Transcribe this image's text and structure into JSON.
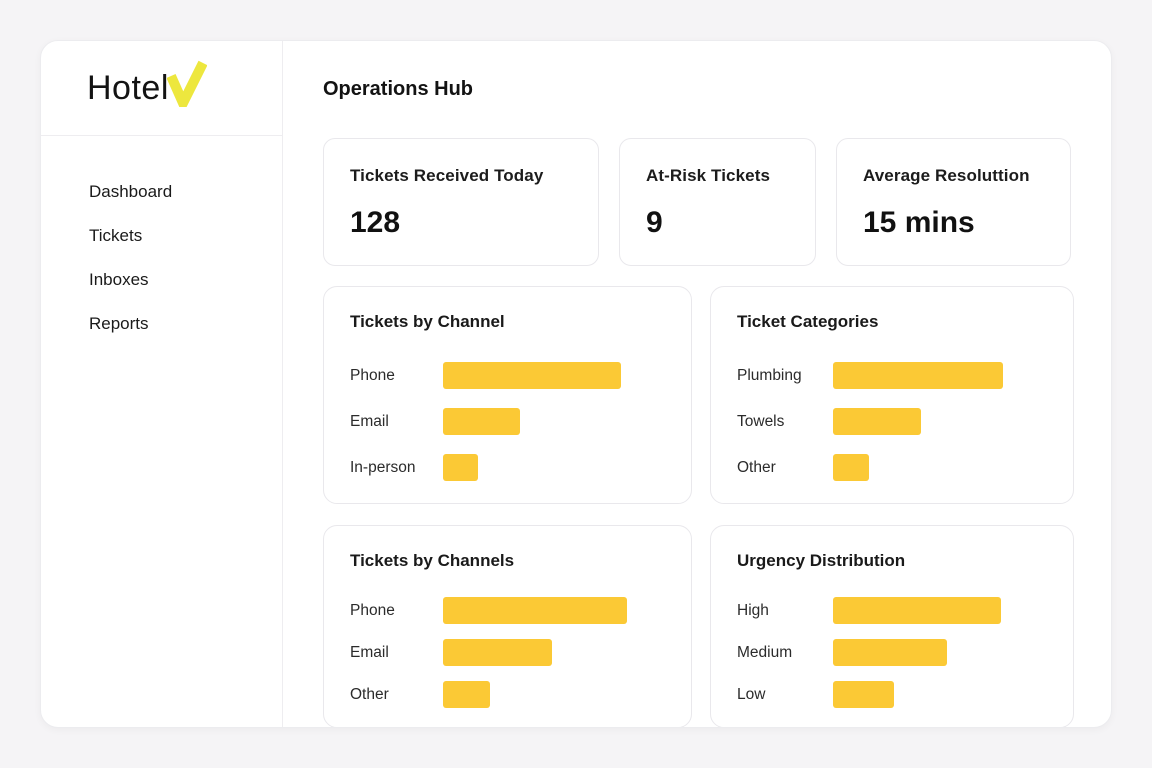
{
  "app": {
    "logo_text": "Hotel",
    "logo_check_color": "#ede73e"
  },
  "colors": {
    "accent_yellow": "#fbc935",
    "logo_yellow": "#ede73e",
    "page_background": "#f5f4f6",
    "card_border": "#e9e8ec",
    "text_dark": "#131313"
  },
  "sidebar": {
    "items": [
      {
        "label": "Dashboard"
      },
      {
        "label": "Tickets"
      },
      {
        "label": "Inboxes"
      },
      {
        "label": "Reports"
      }
    ]
  },
  "header": {
    "title": "Operations Hub"
  },
  "stats": [
    {
      "label": "Tickets Received Today",
      "value": "128"
    },
    {
      "label": "At-Risk Tickets",
      "value": "9"
    },
    {
      "label": "Average Resoluttion",
      "value": "15 mins"
    }
  ],
  "chart_data": [
    {
      "type": "bar",
      "orientation": "horizontal",
      "title": "Tickets by Channel",
      "categories": [
        "Phone",
        "Email",
        "In-person"
      ],
      "values": [
        178,
        77,
        35
      ],
      "unit": "relative bar length in px (no numeric axis shown)",
      "bar_color": "#fbc935",
      "grid": false,
      "legend": false
    },
    {
      "type": "bar",
      "orientation": "horizontal",
      "title": "Ticket Categories",
      "categories": [
        "Plumbing",
        "Towels",
        "Other"
      ],
      "values": [
        170,
        88,
        36
      ],
      "unit": "relative bar length in px (no numeric axis shown)",
      "bar_color": "#fbc935",
      "grid": false,
      "legend": false
    },
    {
      "type": "bar",
      "orientation": "horizontal",
      "title": "Tickets by Channels",
      "categories": [
        "Phone",
        "Email",
        "Other"
      ],
      "values": [
        184,
        109,
        47
      ],
      "unit": "relative bar length in px (no numeric axis shown)",
      "bar_color": "#fbc935",
      "grid": false,
      "legend": false
    },
    {
      "type": "bar",
      "orientation": "horizontal",
      "title": "Urgency Distribution",
      "categories": [
        "High",
        "Medium",
        "Low"
      ],
      "values": [
        168,
        114,
        61
      ],
      "unit": "relative bar length in px (no numeric axis shown)",
      "bar_color": "#fbc935",
      "grid": false,
      "legend": false
    }
  ]
}
